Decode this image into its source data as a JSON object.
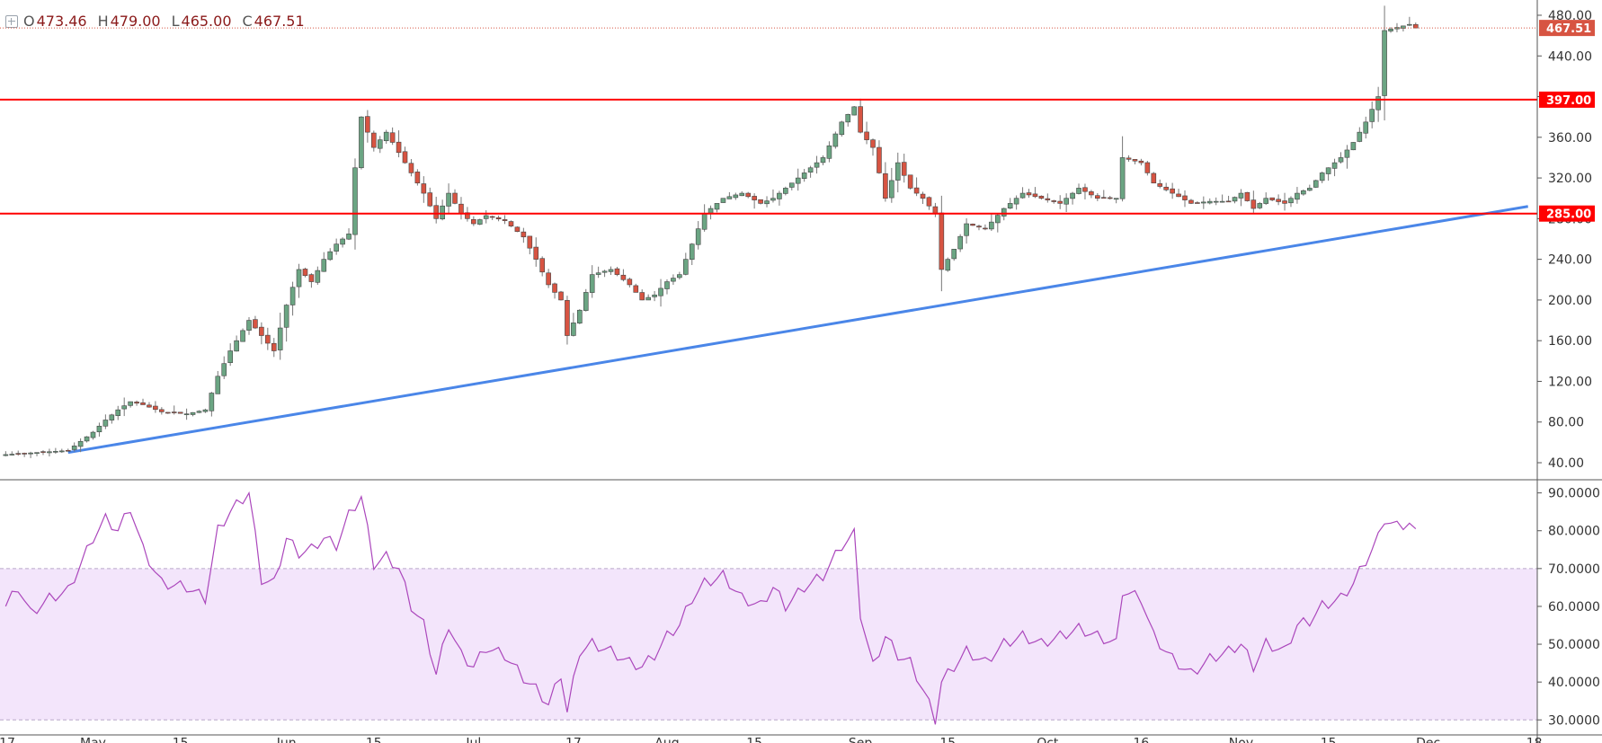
{
  "legend": {
    "o_key": "O",
    "o": "473.46",
    "h_key": "H",
    "h": "479.00",
    "l_key": "L",
    "l": "465.00",
    "c_key": "C",
    "c": "467.51"
  },
  "colors": {
    "up": "#6ba583",
    "down": "#d75442",
    "hline": "#ff0000",
    "trend": "#4a86e8",
    "rsi_line": "#ab47bc",
    "rsi_band": "#f3e5fb",
    "grid_axis": "#555555"
  },
  "chart_data": [
    {
      "type": "candlestick",
      "price_axis": {
        "ylim": [
          25,
          495
        ],
        "ticks": [
          40,
          80,
          120,
          160,
          200,
          240,
          280,
          320,
          360,
          400,
          440,
          480
        ],
        "tick_labels": [
          "40.00",
          "80.00",
          "120.00",
          "160.00",
          "200.00",
          "240.00",
          "280.00",
          "320.00",
          "360.00",
          "400.00",
          "440.00",
          "480.00"
        ]
      },
      "price_labels": {
        "last": "467.51",
        "resistance": "397.00",
        "support": "285.00"
      },
      "horizontal_lines": [
        397,
        285
      ],
      "trendline": {
        "from": [
          "Apr 27",
          50
        ],
        "to": [
          "Dec 17",
          292
        ]
      },
      "time_axis": {
        "labels": [
          "17",
          "May",
          "15",
          "Jun",
          "15",
          "Jul",
          "17",
          "Aug",
          "15",
          "Sep",
          "15",
          "Oct",
          "16",
          "Nov",
          "15",
          "Dec",
          "18"
        ]
      },
      "candle_anchors": [
        [
          "Apr 17",
          48
        ],
        [
          "Apr 22",
          50
        ],
        [
          "Apr 27",
          52
        ],
        [
          "May 1",
          70
        ],
        [
          "May 3",
          82
        ],
        [
          "May 5",
          92
        ],
        [
          "May 7",
          100
        ],
        [
          "May 9",
          97
        ],
        [
          "May 12",
          90
        ],
        [
          "May 16",
          88
        ],
        [
          "May 19",
          92
        ],
        [
          "May 21",
          125
        ],
        [
          "May 23",
          150
        ],
        [
          "May 26",
          180
        ],
        [
          "May 28",
          165
        ],
        [
          "May 30",
          150
        ],
        [
          "Jun 1",
          195
        ],
        [
          "Jun 3",
          230
        ],
        [
          "Jun 5",
          218
        ],
        [
          "Jun 7",
          240
        ],
        [
          "Jun 9",
          255
        ],
        [
          "Jun 11",
          265
        ],
        [
          "Jun 12",
          330
        ],
        [
          "Jun 13",
          380
        ],
        [
          "Jun 15",
          350
        ],
        [
          "Jun 17",
          365
        ],
        [
          "Jun 19",
          345
        ],
        [
          "Jun 21",
          325
        ],
        [
          "Jun 23",
          305
        ],
        [
          "Jun 25",
          280
        ],
        [
          "Jun 27",
          305
        ],
        [
          "Jun 29",
          285
        ],
        [
          "Jul 1",
          275
        ],
        [
          "Jul 3",
          283
        ],
        [
          "Jul 6",
          278
        ],
        [
          "Jul 9",
          262
        ],
        [
          "Jul 11",
          240
        ],
        [
          "Jul 13",
          215
        ],
        [
          "Jul 15",
          200
        ],
        [
          "Jul 16",
          165
        ],
        [
          "Jul 18",
          190
        ],
        [
          "Jul 20",
          225
        ],
        [
          "Jul 23",
          230
        ],
        [
          "Jul 26",
          215
        ],
        [
          "Jul 28",
          200
        ],
        [
          "Jul 30",
          205
        ],
        [
          "Aug 1",
          218
        ],
        [
          "Aug 3",
          225
        ],
        [
          "Aug 5",
          255
        ],
        [
          "Aug 7",
          285
        ],
        [
          "Aug 10",
          300
        ],
        [
          "Aug 13",
          305
        ],
        [
          "Aug 16",
          295
        ],
        [
          "Aug 18",
          300
        ],
        [
          "Aug 20",
          310
        ],
        [
          "Aug 23",
          325
        ],
        [
          "Aug 26",
          340
        ],
        [
          "Aug 29",
          375
        ],
        [
          "Aug 31",
          390
        ],
        [
          "Sep 1",
          365
        ],
        [
          "Sep 3",
          350
        ],
        [
          "Sep 5",
          300
        ],
        [
          "Sep 7",
          335
        ],
        [
          "Sep 9",
          310
        ],
        [
          "Sep 11",
          300
        ],
        [
          "Sep 13",
          285
        ],
        [
          "Sep 14",
          230
        ],
        [
          "Sep 16",
          250
        ],
        [
          "Sep 18",
          275
        ],
        [
          "Sep 21",
          270
        ],
        [
          "Sep 24",
          290
        ],
        [
          "Sep 27",
          305
        ],
        [
          "Sep 30",
          300
        ],
        [
          "Oct 3",
          295
        ],
        [
          "Oct 6",
          310
        ],
        [
          "Oct 9",
          300
        ],
        [
          "Oct 12",
          300
        ],
        [
          "Oct 13",
          340
        ],
        [
          "Oct 16",
          335
        ],
        [
          "Oct 18",
          315
        ],
        [
          "Oct 21",
          305
        ],
        [
          "Oct 24",
          295
        ],
        [
          "Oct 27",
          297
        ],
        [
          "Oct 30",
          297
        ],
        [
          "Nov 1",
          305
        ],
        [
          "Nov 3",
          290
        ],
        [
          "Nov 5",
          300
        ],
        [
          "Nov 8",
          295
        ],
        [
          "Nov 10",
          305
        ],
        [
          "Nov 12",
          310
        ],
        [
          "Nov 14",
          325
        ],
        [
          "Nov 17",
          340
        ],
        [
          "Nov 19",
          355
        ],
        [
          "Nov 21",
          375
        ],
        [
          "Nov 23",
          400
        ],
        [
          "Nov 24",
          465
        ],
        [
          "Nov 26",
          468
        ],
        [
          "Nov 28",
          471
        ],
        [
          "Nov 29",
          467.51
        ]
      ]
    },
    {
      "type": "line",
      "name": "RSI",
      "rsi_axis": {
        "ylim": [
          26.5,
          93
        ],
        "ticks": [
          30,
          40,
          50,
          60,
          70,
          80,
          90
        ],
        "tick_labels": [
          "30.0000",
          "40.0000",
          "50.0000",
          "60.0000",
          "70.0000",
          "80.0000",
          "90.0000"
        ]
      },
      "overbought_band": [
        30,
        70
      ],
      "rsi_anchors": [
        [
          "Apr 17",
          60
        ],
        [
          "Apr 19",
          65
        ],
        [
          "Apr 21",
          58
        ],
        [
          "Apr 24",
          62
        ],
        [
          "Apr 27",
          64
        ],
        [
          "May 1",
          78
        ],
        [
          "May 3",
          83
        ],
        [
          "May 5",
          80
        ],
        [
          "May 7",
          86
        ],
        [
          "May 9",
          75
        ],
        [
          "May 12",
          66
        ],
        [
          "May 16",
          65
        ],
        [
          "May 19",
          62
        ],
        [
          "May 21",
          80
        ],
        [
          "May 23",
          85
        ],
        [
          "May 26",
          90
        ],
        [
          "May 28",
          67
        ],
        [
          "May 30",
          66
        ],
        [
          "Jun 1",
          78
        ],
        [
          "Jun 3",
          74
        ],
        [
          "Jun 5",
          75
        ],
        [
          "Jun 7",
          78
        ],
        [
          "Jun 9",
          76
        ],
        [
          "Jun 11",
          84
        ],
        [
          "Jun 13",
          89
        ],
        [
          "Jun 15",
          71
        ],
        [
          "Jun 17",
          73
        ],
        [
          "Jun 19",
          70
        ],
        [
          "Jun 21",
          60
        ],
        [
          "Jun 23",
          55
        ],
        [
          "Jun 25",
          42
        ],
        [
          "Jun 27",
          55
        ],
        [
          "Jun 29",
          47
        ],
        [
          "Jul 1",
          44
        ],
        [
          "Jul 3",
          49
        ],
        [
          "Jul 6",
          47
        ],
        [
          "Jul 9",
          41
        ],
        [
          "Jul 11",
          38
        ],
        [
          "Jul 13",
          34
        ],
        [
          "Jul 15",
          42
        ],
        [
          "Jul 16",
          32
        ],
        [
          "Jul 18",
          48
        ],
        [
          "Jul 20",
          50
        ],
        [
          "Jul 23",
          48
        ],
        [
          "Jul 26",
          45
        ],
        [
          "Jul 28",
          44
        ],
        [
          "Jul 30",
          47
        ],
        [
          "Aug 1",
          52
        ],
        [
          "Aug 3",
          55
        ],
        [
          "Aug 5",
          62
        ],
        [
          "Aug 7",
          66
        ],
        [
          "Aug 10",
          68
        ],
        [
          "Aug 13",
          62
        ],
        [
          "Aug 16",
          60
        ],
        [
          "Aug 18",
          65
        ],
        [
          "Aug 20",
          60
        ],
        [
          "Aug 23",
          65
        ],
        [
          "Aug 26",
          68
        ],
        [
          "Aug 29",
          76
        ],
        [
          "Aug 31",
          79
        ],
        [
          "Sep 1",
          58
        ],
        [
          "Sep 3",
          44
        ],
        [
          "Sep 5",
          52
        ],
        [
          "Sep 7",
          47
        ],
        [
          "Sep 9",
          45
        ],
        [
          "Sep 11",
          38
        ],
        [
          "Sep 13",
          30
        ],
        [
          "Sep 14",
          40
        ],
        [
          "Sep 16",
          44
        ],
        [
          "Sep 18",
          48
        ],
        [
          "Sep 21",
          45
        ],
        [
          "Sep 24",
          50
        ],
        [
          "Sep 27",
          52
        ],
        [
          "Sep 30",
          50
        ],
        [
          "Oct 3",
          52
        ],
        [
          "Oct 6",
          54
        ],
        [
          "Oct 9",
          52
        ],
        [
          "Oct 12",
          50
        ],
        [
          "Oct 13",
          64
        ],
        [
          "Oct 16",
          62
        ],
        [
          "Oct 18",
          52
        ],
        [
          "Oct 21",
          46
        ],
        [
          "Oct 24",
          42
        ],
        [
          "Oct 27",
          46
        ],
        [
          "Oct 30",
          48
        ],
        [
          "Nov 1",
          50
        ],
        [
          "Nov 3",
          44
        ],
        [
          "Nov 5",
          50
        ],
        [
          "Nov 8",
          48
        ],
        [
          "Nov 10",
          55
        ],
        [
          "Nov 12",
          56
        ],
        [
          "Nov 14",
          60
        ],
        [
          "Nov 17",
          62
        ],
        [
          "Nov 19",
          66
        ],
        [
          "Nov 21",
          72
        ],
        [
          "Nov 23",
          78
        ],
        [
          "Nov 24",
          83
        ],
        [
          "Nov 26",
          81
        ],
        [
          "Nov 28",
          82
        ],
        [
          "Nov 29",
          79
        ]
      ]
    }
  ]
}
